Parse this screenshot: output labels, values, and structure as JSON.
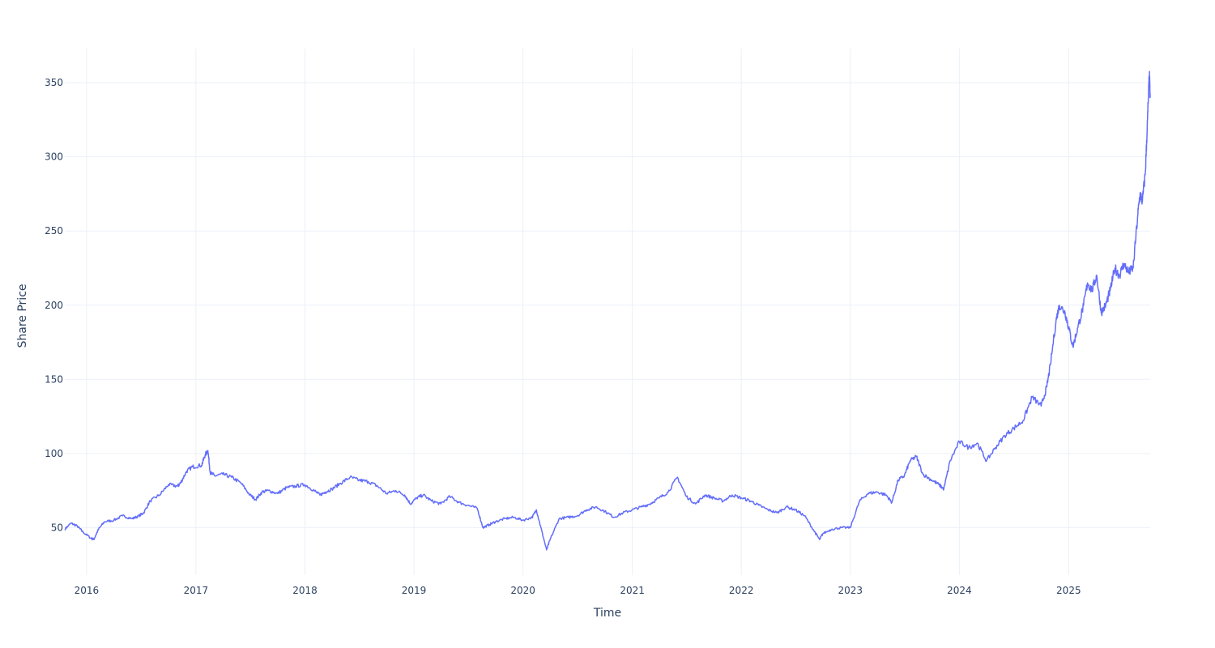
{
  "chart_data": {
    "type": "line",
    "xlabel": "Time",
    "ylabel": "Share Price",
    "x_range": [
      "2015-10-20",
      "2025-10-01"
    ],
    "ylim": [
      18,
      373
    ],
    "x_ticks": [
      {
        "label": "2016",
        "date": "2016-01-01"
      },
      {
        "label": "2017",
        "date": "2017-01-01"
      },
      {
        "label": "2018",
        "date": "2018-01-01"
      },
      {
        "label": "2019",
        "date": "2019-01-01"
      },
      {
        "label": "2020",
        "date": "2020-01-01"
      },
      {
        "label": "2021",
        "date": "2021-01-01"
      },
      {
        "label": "2022",
        "date": "2022-01-01"
      },
      {
        "label": "2023",
        "date": "2023-01-01"
      },
      {
        "label": "2024",
        "date": "2024-01-01"
      },
      {
        "label": "2025",
        "date": "2025-01-01"
      }
    ],
    "y_ticks": [
      50,
      100,
      150,
      200,
      250,
      300,
      350
    ],
    "grid": true,
    "legend": "none",
    "line_color": "#636efa",
    "series": [
      {
        "x": [
          "2015-10-20",
          "2015-11-10",
          "2015-12-01",
          "2015-12-20",
          "2016-01-15",
          "2016-01-25",
          "2016-02-10",
          "2016-03-01",
          "2016-04-01",
          "2016-05-01",
          "2016-06-01",
          "2016-06-25",
          "2016-07-10",
          "2016-08-01",
          "2016-09-01",
          "2016-10-01",
          "2016-11-01",
          "2016-11-10",
          "2016-12-01",
          "2016-12-20",
          "2017-01-20",
          "2017-02-01",
          "2017-02-10",
          "2017-02-18",
          "2017-03-05",
          "2017-04-01",
          "2017-05-01",
          "2017-06-01",
          "2017-07-01",
          "2017-07-20",
          "2017-08-10",
          "2017-09-01",
          "2017-10-01",
          "2017-11-01",
          "2017-12-01",
          "2018-01-01",
          "2018-02-01",
          "2018-02-20",
          "2018-03-10",
          "2018-04-01",
          "2018-05-01",
          "2018-06-01",
          "2018-07-01",
          "2018-08-01",
          "2018-09-01",
          "2018-10-01",
          "2018-11-01",
          "2018-12-01",
          "2018-12-20",
          "2019-01-10",
          "2019-02-01",
          "2019-03-01",
          "2019-04-01",
          "2019-05-01",
          "2019-06-01",
          "2019-07-01",
          "2019-08-01",
          "2019-08-20",
          "2019-09-10",
          "2019-10-01",
          "2019-11-01",
          "2019-12-01",
          "2020-01-01",
          "2020-02-01",
          "2020-02-15",
          "2020-03-01",
          "2020-03-20",
          "2020-04-01",
          "2020-05-01",
          "2020-06-01",
          "2020-07-01",
          "2020-08-01",
          "2020-09-01",
          "2020-10-01",
          "2020-11-01",
          "2020-12-01",
          "2021-01-01",
          "2021-02-01",
          "2021-03-01",
          "2021-04-01",
          "2021-05-01",
          "2021-06-01",
          "2021-07-01",
          "2021-08-01",
          "2021-09-01",
          "2021-10-01",
          "2021-11-01",
          "2021-12-01",
          "2022-01-01",
          "2022-02-01",
          "2022-03-01",
          "2022-04-01",
          "2022-05-01",
          "2022-06-01",
          "2022-07-01",
          "2022-08-01",
          "2022-09-01",
          "2022-09-20",
          "2022-10-01",
          "2022-11-01",
          "2022-12-01",
          "2023-01-01",
          "2023-02-01",
          "2023-03-01",
          "2023-04-01",
          "2023-05-01",
          "2023-05-20",
          "2023-06-10",
          "2023-07-01",
          "2023-07-20",
          "2023-08-10",
          "2023-09-01",
          "2023-10-01",
          "2023-10-25",
          "2023-11-10",
          "2023-12-01",
          "2024-01-01",
          "2024-02-01",
          "2024-03-01",
          "2024-04-01",
          "2024-05-01",
          "2024-06-01",
          "2024-07-01",
          "2024-08-01",
          "2024-09-01",
          "2024-10-01",
          "2024-10-20",
          "2024-11-01",
          "2024-11-20",
          "2024-12-01",
          "2024-12-20",
          "2025-01-01",
          "2025-01-15",
          "2025-02-01",
          "2025-02-20",
          "2025-03-05",
          "2025-03-20",
          "2025-04-05",
          "2025-04-20",
          "2025-05-05",
          "2025-05-20",
          "2025-06-05",
          "2025-06-20",
          "2025-07-05",
          "2025-07-20",
          "2025-08-05",
          "2025-08-20",
          "2025-08-28",
          "2025-09-05",
          "2025-09-15",
          "2025-09-22",
          "2025-09-28",
          "2025-10-01"
        ],
        "y": [
          49,
          53,
          51,
          47,
          43,
          42,
          49,
          54,
          55,
          58,
          56,
          58,
          60,
          68,
          72,
          79,
          78,
          80,
          88,
          91,
          92,
          99,
          102,
          87,
          85,
          86,
          84,
          80,
          72,
          69,
          74,
          75,
          73,
          77,
          78,
          79,
          75,
          72,
          74,
          76,
          80,
          84,
          82,
          81,
          78,
          73,
          75,
          72,
          66,
          70,
          72,
          68,
          66,
          71,
          67,
          65,
          63,
          50,
          52,
          54,
          56,
          57,
          55,
          57,
          62,
          50,
          35,
          42,
          56,
          57,
          58,
          62,
          64,
          61,
          57,
          60,
          62,
          64,
          66,
          70,
          74,
          84,
          71,
          66,
          72,
          70,
          68,
          72,
          70,
          68,
          65,
          62,
          60,
          64,
          62,
          58,
          48,
          42,
          46,
          49,
          50,
          50,
          68,
          73,
          74,
          72,
          67,
          82,
          85,
          95,
          98,
          86,
          82,
          79,
          76,
          95,
          108,
          104,
          107,
          95,
          104,
          112,
          117,
          122,
          138,
          132,
          145,
          160,
          190,
          200,
          195,
          185,
          172,
          185,
          200,
          215,
          210,
          220,
          195,
          200,
          210,
          225,
          220,
          228,
          222,
          225,
          260,
          275,
          270,
          290,
          325,
          355,
          340
        ]
      }
    ]
  }
}
